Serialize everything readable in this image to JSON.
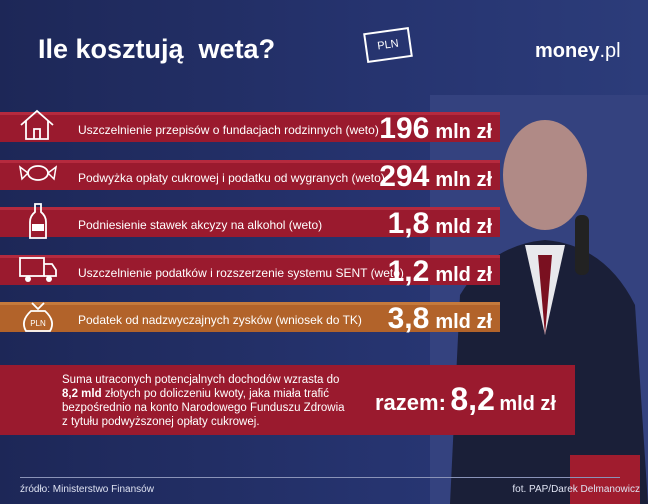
{
  "header": {
    "title": "Ile kosztują  weta?",
    "icon_label": "PLN",
    "brand": "money",
    "brand_suffix": ".pl"
  },
  "items": [
    {
      "label": "Uszczelnienie przepisów o fundacjach rodzinnych (weto)",
      "amount": "196",
      "unit": "mln zł"
    },
    {
      "label": "Podwyżka opłaty cukrowej i podatku od wygranych (weto)",
      "amount": "294",
      "unit": "mln zł"
    },
    {
      "label": "Podniesienie stawek akcyzy na alkohol (weto)",
      "amount": "1,8",
      "unit": "mld zł"
    },
    {
      "label": "Uszczelnienie podatków i rozszerzenie systemu SENT (weto)",
      "amount": "1,2",
      "unit": "mld zł"
    },
    {
      "label": "Podatek od nadzwyczajnych zysków (wniosek do TK)",
      "amount": "3,8",
      "unit": "mld zł",
      "icon_label": "PLN"
    }
  ],
  "summary": {
    "parts": [
      "Suma utraconych potencjalnych dochodów wzrasta do ",
      "8,2 mld",
      " złotych po doliczeniu kwoty, jaka miała trafić bezpośrednio na konto Narodowego Funduszu Zdrowia z tytułu podwyższonej opłaty cukrowej."
    ],
    "total_label": "razem:",
    "total_amount": "8,2",
    "total_unit": "mld zł"
  },
  "footer": {
    "source": "źródło: Ministerstwo Finansów",
    "credit": "fot. PAP/Darek Delmanowicz"
  }
}
